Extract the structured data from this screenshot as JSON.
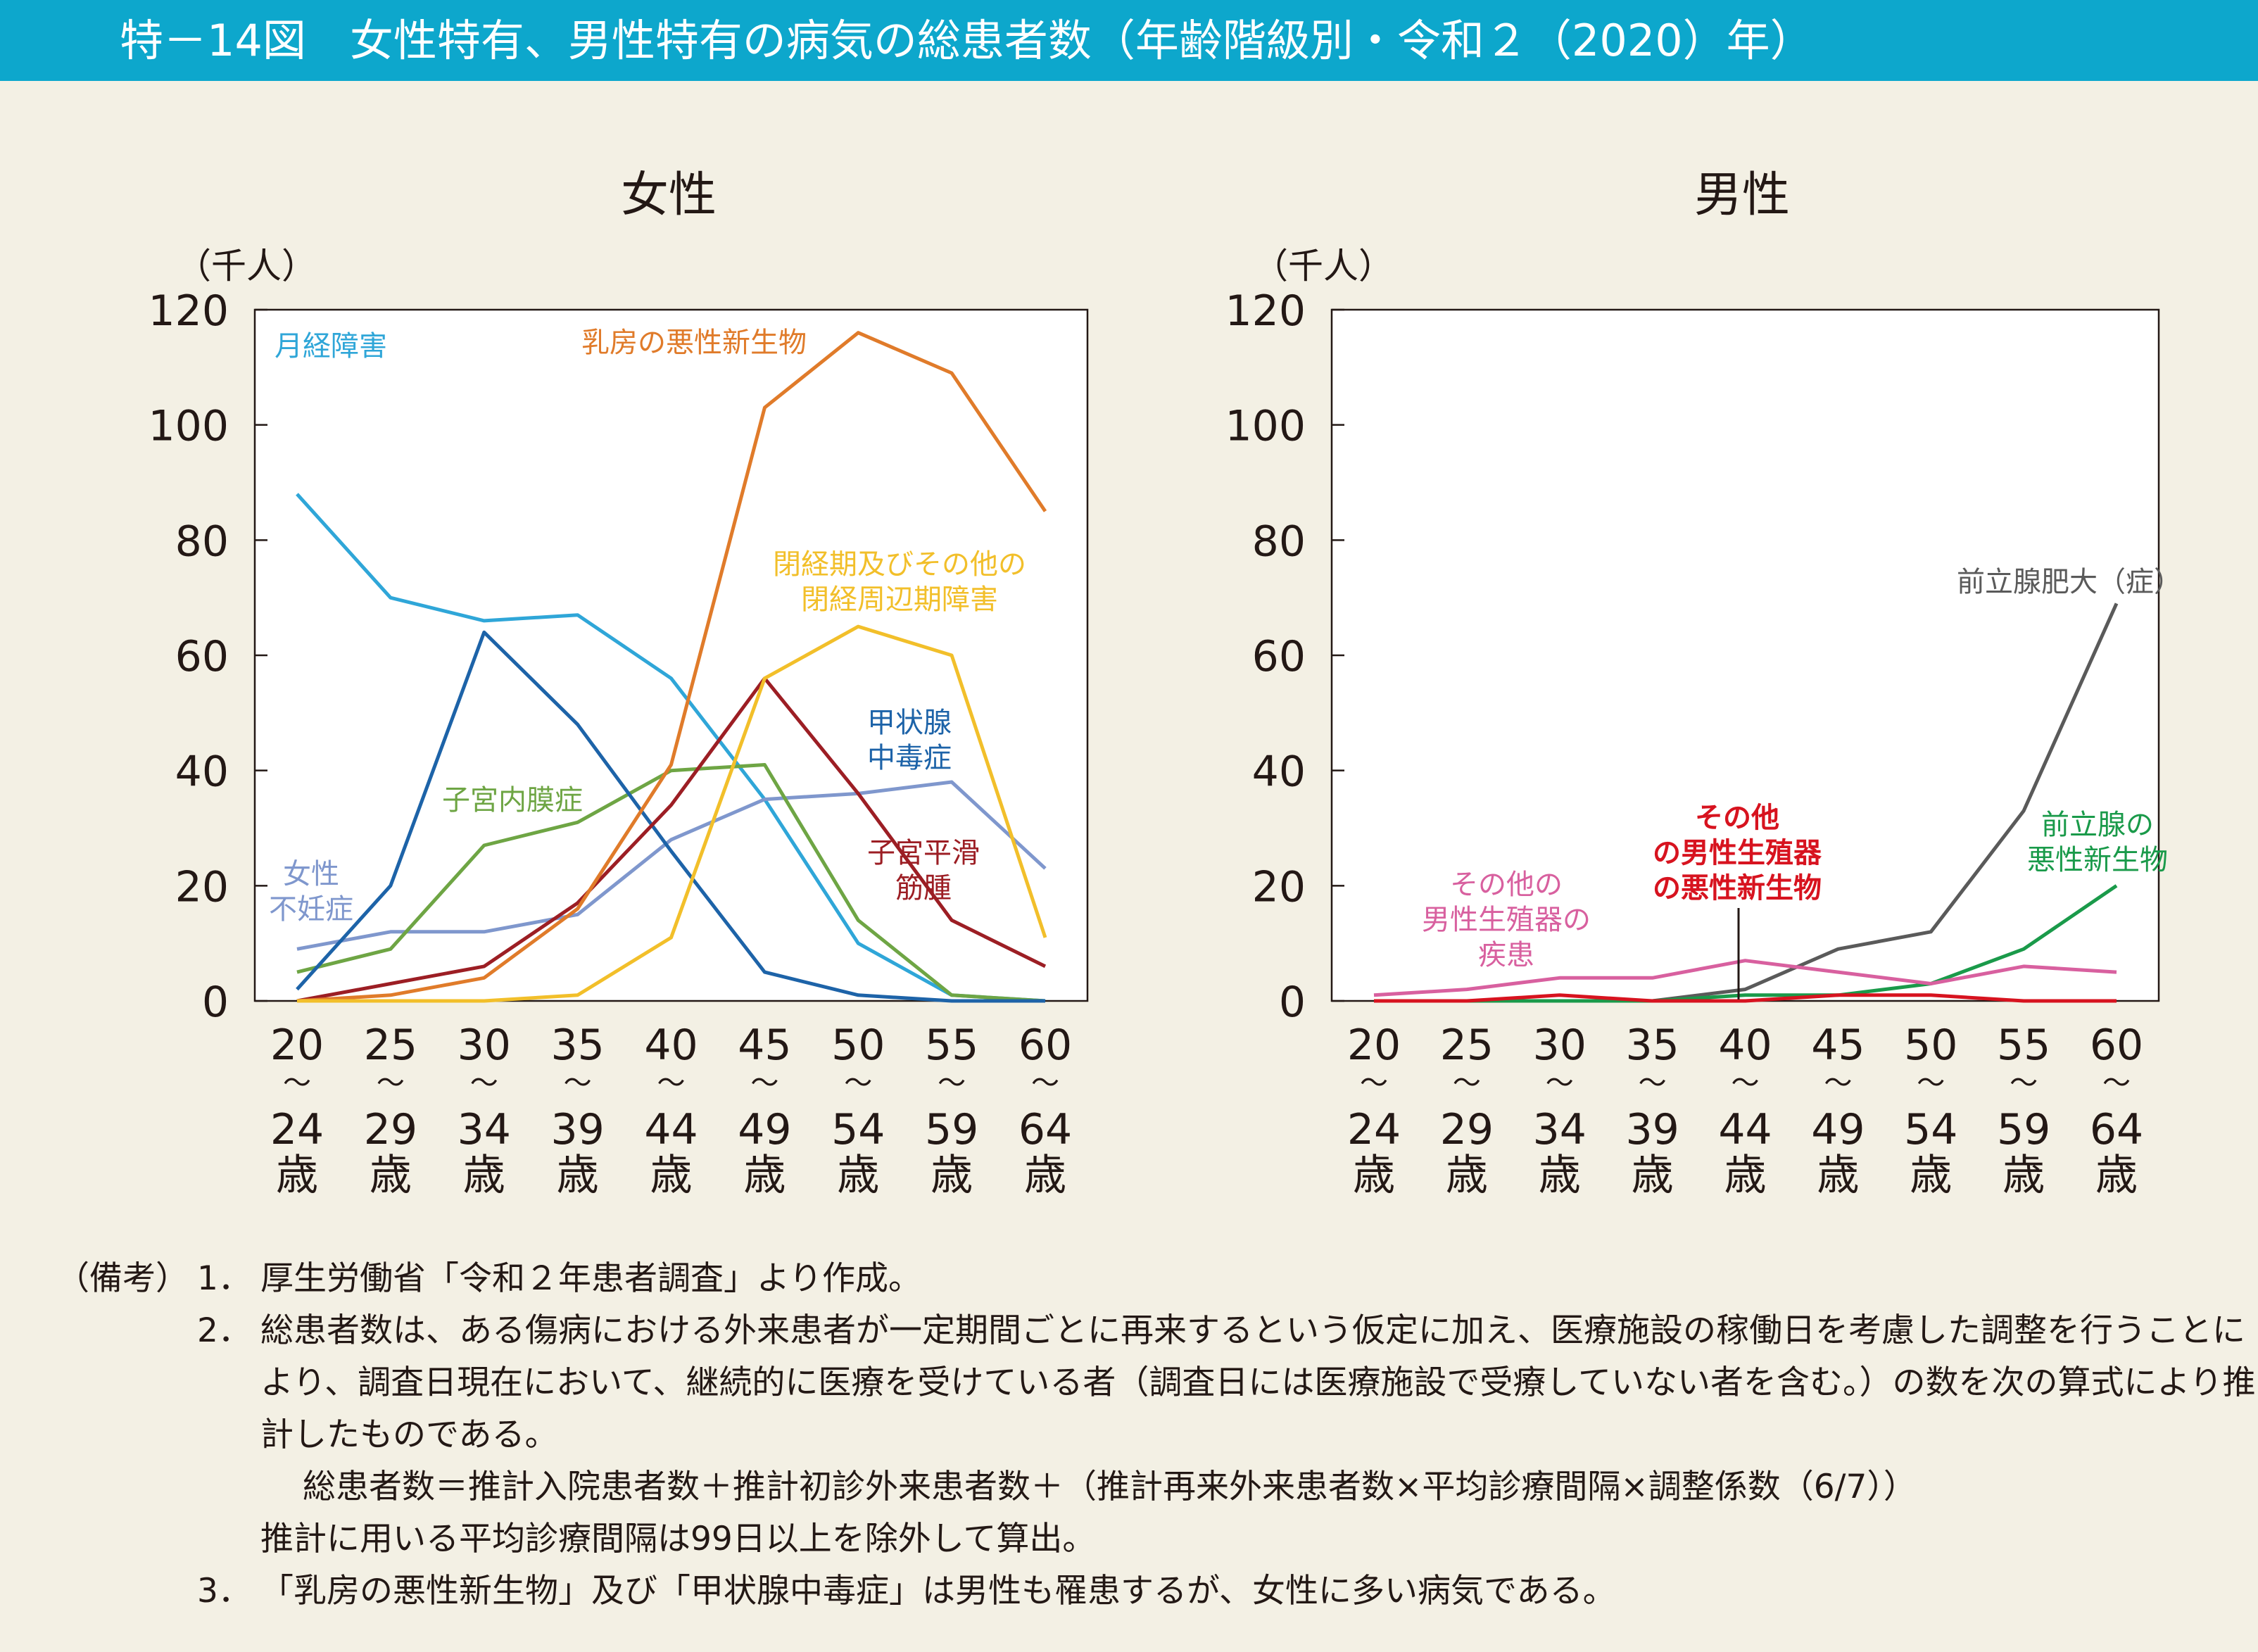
{
  "title": "特－14図　女性特有、男性特有の病気の総患者数（年齢階級別・令和２（2020）年）",
  "chart_data": [
    {
      "type": "line",
      "title": "女性",
      "ylabel": "（千人）",
      "ylim": [
        0,
        120
      ],
      "yticks": [
        "0",
        "20",
        "40",
        "60",
        "80",
        "100",
        "120"
      ],
      "categories": [
        [
          "20",
          "〜",
          "24",
          "歳"
        ],
        [
          "25",
          "〜",
          "29",
          "歳"
        ],
        [
          "30",
          "〜",
          "34",
          "歳"
        ],
        [
          "35",
          "〜",
          "39",
          "歳"
        ],
        [
          "40",
          "〜",
          "44",
          "歳"
        ],
        [
          "45",
          "〜",
          "49",
          "歳"
        ],
        [
          "50",
          "〜",
          "54",
          "歳"
        ],
        [
          "55",
          "〜",
          "59",
          "歳"
        ],
        [
          "60",
          "〜",
          "64",
          "歳"
        ]
      ],
      "series": [
        {
          "name": "月経障害",
          "color": "#2fa6d8",
          "values": [
            88,
            70,
            66,
            67,
            56,
            35,
            10,
            1,
            0
          ]
        },
        {
          "name": "女性不妊症",
          "color": "#7f97cd",
          "values": [
            9,
            12,
            12,
            15,
            28,
            35,
            36,
            38,
            23
          ]
        },
        {
          "name": "子宮内膜症",
          "color": "#6ea544",
          "values": [
            5,
            9,
            27,
            31,
            40,
            41,
            14,
            1,
            0
          ]
        },
        {
          "name": "甲状腺中毒症",
          "color": "#1d63a8",
          "values": [
            2,
            20,
            64,
            48,
            26,
            5,
            1,
            0,
            0
          ]
        },
        {
          "name": "子宮平滑筋腫",
          "color": "#9c1e24",
          "values": [
            0,
            3,
            6,
            17,
            34,
            56,
            36,
            14,
            6
          ]
        },
        {
          "name": "乳房の悪性新生物",
          "color": "#e07b2a",
          "values": [
            0,
            1,
            4,
            16,
            41,
            103,
            116,
            109,
            85
          ]
        },
        {
          "name": "閉経期及びその他の閉経周辺期障害",
          "color": "#f2bf2a",
          "values": [
            0,
            0,
            0,
            1,
            11,
            56,
            65,
            60,
            11
          ]
        }
      ]
    },
    {
      "type": "line",
      "title": "男性",
      "ylabel": "（千人）",
      "ylim": [
        0,
        120
      ],
      "yticks": [
        "0",
        "20",
        "40",
        "60",
        "80",
        "100",
        "120"
      ],
      "categories": [
        [
          "20",
          "〜",
          "24",
          "歳"
        ],
        [
          "25",
          "〜",
          "29",
          "歳"
        ],
        [
          "30",
          "〜",
          "34",
          "歳"
        ],
        [
          "35",
          "〜",
          "39",
          "歳"
        ],
        [
          "40",
          "〜",
          "44",
          "歳"
        ],
        [
          "45",
          "〜",
          "49",
          "歳"
        ],
        [
          "50",
          "〜",
          "54",
          "歳"
        ],
        [
          "55",
          "〜",
          "59",
          "歳"
        ],
        [
          "60",
          "〜",
          "64",
          "歳"
        ]
      ],
      "series": [
        {
          "name": "前立腺肥大（症）",
          "color": "#5a5a5a",
          "values": [
            0,
            0,
            0,
            0,
            2,
            9,
            12,
            33,
            69
          ]
        },
        {
          "name": "前立腺の悪性新生物",
          "color": "#1a9a4a",
          "values": [
            0,
            0,
            0,
            0,
            1,
            1,
            3,
            9,
            20
          ]
        },
        {
          "name": "その他の男性生殖器の疾患",
          "color": "#d8609f",
          "values": [
            1,
            2,
            4,
            4,
            7,
            5,
            3,
            6,
            5
          ]
        },
        {
          "name": "その他の男性生殖器の悪性新生物",
          "color": "#d7131f",
          "values": [
            0,
            0,
            1,
            0,
            0,
            1,
            1,
            0,
            0
          ]
        }
      ]
    }
  ],
  "notes": {
    "label": "（備考）",
    "items": [
      {
        "num": "1．",
        "text": "厚生労働省「令和２年患者調査」より作成。"
      },
      {
        "num": "2．",
        "text": "総患者数は、ある傷病における外来患者が一定期間ごとに再来するという仮定に加え、医療施設の稼働日を考慮した調整を行うことにより、調査日現在において、継続的に医療を受けている者（調査日には医療施設で受療していない者を含む。）の数を次の算式により推計したものである。"
      },
      {
        "num": "",
        "text": "総患者数＝推計入院患者数＋推計初診外来患者数＋（推計再来外来患者数×平均診療間隔×調整係数（6/7））"
      },
      {
        "num": "",
        "text": "推計に用いる平均診療間隔は99日以上を除外して算出。"
      },
      {
        "num": "3．",
        "text": "「乳房の悪性新生物」及び「甲状腺中毒症」は男性も罹患するが、女性に多い病気である。"
      }
    ]
  }
}
